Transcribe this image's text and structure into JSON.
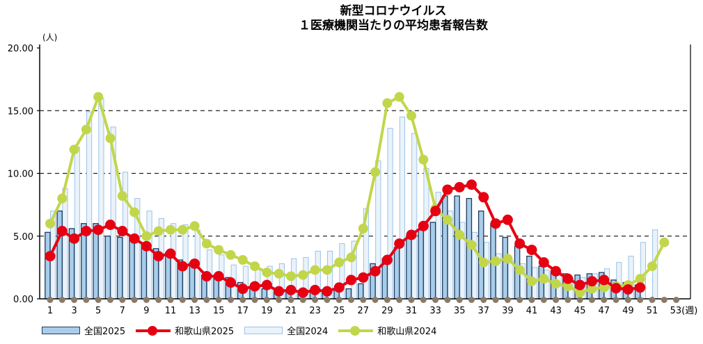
{
  "title": {
    "line1": "新型コロナウイルス",
    "line2": "１医療機関当たりの平均患者報告数"
  },
  "y_axis": {
    "unit": "(人)",
    "ticks": [
      "0.00",
      "5.00",
      "10.00",
      "15.00",
      "20.00"
    ],
    "tick_values": [
      0,
      5,
      10,
      15,
      20
    ],
    "max": 20
  },
  "x_axis": {
    "tick_weeks": [
      1,
      3,
      5,
      7,
      9,
      11,
      13,
      15,
      17,
      19,
      21,
      23,
      25,
      27,
      29,
      31,
      33,
      35,
      37,
      39,
      41,
      43,
      45,
      47,
      49,
      51,
      53
    ],
    "last_week": 53,
    "last_suffix": "(週)"
  },
  "colors": {
    "bar2025_fill": "#A8CDE9",
    "bar2025_stroke": "#1F3A60",
    "bar2024_fill": "#EAF2FA",
    "bar2024_stroke": "#9DC3E5",
    "line2025": "#E50012",
    "line2024": "#C2D64B",
    "axis_dot": "#8A7A68",
    "grid": "#222222",
    "axis": "#000000"
  },
  "legend": {
    "items": [
      {
        "label": "全国2025",
        "type": "box",
        "style": "bar2025"
      },
      {
        "label": "和歌山県2025",
        "type": "line",
        "style": "line2025"
      },
      {
        "label": "全国2024",
        "type": "box",
        "style": "bar2024"
      },
      {
        "label": "和歌山県2024",
        "type": "line",
        "style": "line2024"
      }
    ]
  },
  "chart_data": {
    "type": "bar+line combo",
    "title": "新型コロナウイルス １医療機関当たりの平均患者報告数",
    "xlabel": "週 (weeks 1-53)",
    "ylabel": "(人)",
    "ylim": [
      0,
      20
    ],
    "grid": "dashed horizontal at 5,10,15",
    "legend_position": "bottom-left",
    "x_start_week": 1,
    "series": [
      {
        "name": "全国2025",
        "type": "bar",
        "values": [
          5.3,
          7.0,
          5.6,
          6.0,
          6.0,
          5.0,
          4.9,
          4.9,
          4.3,
          4.0,
          3.7,
          3.1,
          2.9,
          1.9,
          1.7,
          1.7,
          1.3,
          1.0,
          0.8,
          0.8,
          0.7,
          0.6,
          0.6,
          0.6,
          0.7,
          0.8,
          1.2,
          2.8,
          3.2,
          4.1,
          5.0,
          5.5,
          6.1,
          8.2,
          8.2,
          8.0,
          7.0,
          6.0,
          4.9,
          4.2,
          3.4,
          2.6,
          2.2,
          2.0,
          1.9,
          2.0,
          2.1,
          1.5,
          1.3,
          1.1
        ]
      },
      {
        "name": "和歌山県2025",
        "type": "line",
        "values": [
          3.4,
          5.4,
          4.8,
          5.4,
          5.5,
          5.9,
          5.4,
          4.8,
          4.2,
          3.4,
          3.6,
          2.6,
          2.8,
          1.8,
          1.8,
          1.3,
          0.8,
          1.0,
          1.1,
          0.6,
          0.7,
          0.5,
          0.7,
          0.6,
          0.9,
          1.5,
          1.7,
          2.2,
          3.1,
          4.4,
          5.1,
          5.8,
          7.0,
          8.7,
          8.9,
          9.1,
          8.1,
          6.0,
          6.3,
          4.4,
          3.9,
          2.9,
          2.2,
          1.6,
          1.1,
          1.4,
          1.5,
          0.85,
          0.75,
          0.9
        ]
      },
      {
        "name": "全国2024",
        "type": "bar",
        "values": [
          7.0,
          8.8,
          12.1,
          14.9,
          16.0,
          13.7,
          10.1,
          8.0,
          7.0,
          6.4,
          6.0,
          5.9,
          5.5,
          3.9,
          3.5,
          2.7,
          2.6,
          2.4,
          2.6,
          2.8,
          3.2,
          3.3,
          3.8,
          3.8,
          4.4,
          4.6,
          7.2,
          11.0,
          13.6,
          14.5,
          13.2,
          10.4,
          8.5,
          7.0,
          6.1,
          5.3,
          4.5,
          3.6,
          3.1,
          2.8,
          2.5,
          2.3,
          2.1,
          1.6,
          1.7,
          2.0,
          2.4,
          2.9,
          3.4,
          4.5,
          5.5
        ]
      },
      {
        "name": "和歌山県2024",
        "type": "line",
        "values": [
          6.0,
          8.0,
          11.9,
          13.5,
          16.1,
          12.8,
          8.2,
          6.9,
          5.0,
          5.4,
          5.5,
          5.5,
          5.8,
          4.4,
          3.9,
          3.5,
          3.1,
          2.6,
          2.1,
          2.0,
          1.8,
          1.9,
          2.3,
          2.3,
          2.9,
          3.3,
          5.6,
          10.1,
          15.6,
          16.1,
          14.6,
          11.1,
          7.2,
          6.3,
          5.1,
          4.3,
          2.9,
          3.0,
          3.2,
          2.3,
          1.4,
          1.6,
          1.2,
          1.0,
          0.5,
          0.8,
          0.9,
          1.0,
          1.1,
          1.6,
          2.6,
          4.5
        ]
      }
    ],
    "axis_marker_weeks": 53
  }
}
